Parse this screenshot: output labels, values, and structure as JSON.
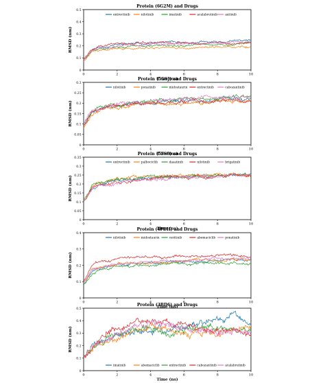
{
  "chart_data": [
    {
      "type": "line",
      "title": "Protein (6G2M) and Drugs",
      "xlabel": "Time (ns)",
      "ylabel": "RMSD (nm)",
      "xlim": [
        0,
        10
      ],
      "ylim": [
        0,
        0.5
      ],
      "xticks": [
        "0",
        "2",
        "4",
        "6",
        "8",
        "10"
      ],
      "yticks": [
        "0",
        "0.1",
        "0.2",
        "0.3",
        "0.4",
        "0.5"
      ],
      "legend_position": "top",
      "series": [
        {
          "name": "entrectinib",
          "color": "#1f77b4",
          "x": [
            0,
            0.5,
            1,
            1.5,
            2,
            3,
            4,
            5,
            6,
            7,
            8,
            9,
            10
          ],
          "y": [
            0.08,
            0.17,
            0.19,
            0.2,
            0.21,
            0.22,
            0.22,
            0.23,
            0.22,
            0.23,
            0.23,
            0.24,
            0.25
          ]
        },
        {
          "name": "nilotinib",
          "color": "#ff7f0e",
          "x": [
            0,
            0.5,
            1,
            1.5,
            2,
            3,
            4,
            5,
            6,
            7,
            8,
            9,
            10
          ],
          "y": [
            0.07,
            0.15,
            0.17,
            0.18,
            0.18,
            0.18,
            0.18,
            0.19,
            0.18,
            0.18,
            0.19,
            0.19,
            0.19
          ]
        },
        {
          "name": "imatinib",
          "color": "#2ca02c",
          "x": [
            0,
            0.5,
            1,
            1.5,
            2,
            3,
            4,
            5,
            6,
            7,
            8,
            9,
            10
          ],
          "y": [
            0.08,
            0.16,
            0.18,
            0.19,
            0.19,
            0.2,
            0.2,
            0.2,
            0.2,
            0.21,
            0.21,
            0.21,
            0.22
          ]
        },
        {
          "name": "acalabrutinib",
          "color": "#d62728",
          "x": [
            0,
            0.5,
            1,
            1.5,
            2,
            3,
            4,
            5,
            6,
            7,
            8,
            9,
            10
          ],
          "y": [
            0.09,
            0.17,
            0.2,
            0.21,
            0.22,
            0.22,
            0.23,
            0.22,
            0.23,
            0.22,
            0.23,
            0.22,
            0.22
          ]
        },
        {
          "name": "axitinib",
          "color": "#e377c2",
          "x": [
            0,
            0.5,
            1,
            1.5,
            2,
            3,
            4,
            5,
            6,
            7,
            8,
            9,
            10
          ],
          "y": [
            0.08,
            0.16,
            0.18,
            0.19,
            0.2,
            0.21,
            0.21,
            0.22,
            0.22,
            0.23,
            0.22,
            0.23,
            0.23
          ]
        }
      ]
    },
    {
      "type": "line",
      "title": "Protein (5GSJ) and Drugs",
      "xlabel": "Time (ns)",
      "ylabel": "RMSD (nm)",
      "xlim": [
        0,
        10
      ],
      "ylim": [
        0,
        0.3
      ],
      "xticks": [
        "0",
        "2",
        "4",
        "6",
        "8",
        "10"
      ],
      "yticks": [
        "0",
        "0.05",
        "0.1",
        "0.15",
        "0.2",
        "0.25",
        "0.3"
      ],
      "legend_position": "top",
      "series": [
        {
          "name": "nilotinib",
          "color": "#1f77b4",
          "x": [
            0,
            0.5,
            1,
            2,
            3,
            4,
            5,
            6,
            7,
            8,
            9,
            10
          ],
          "y": [
            0.09,
            0.16,
            0.17,
            0.19,
            0.2,
            0.2,
            0.21,
            0.21,
            0.21,
            0.22,
            0.22,
            0.22
          ]
        },
        {
          "name": "ponatinib",
          "color": "#ff7f0e",
          "x": [
            0,
            0.5,
            1,
            2,
            3,
            4,
            5,
            6,
            7,
            8,
            9,
            10
          ],
          "y": [
            0.08,
            0.15,
            0.17,
            0.18,
            0.19,
            0.2,
            0.2,
            0.2,
            0.2,
            0.21,
            0.21,
            0.21
          ]
        },
        {
          "name": "midostaurin",
          "color": "#2ca02c",
          "x": [
            0,
            0.5,
            1,
            2,
            3,
            4,
            5,
            6,
            7,
            8,
            9,
            10
          ],
          "y": [
            0.1,
            0.16,
            0.18,
            0.19,
            0.2,
            0.21,
            0.21,
            0.22,
            0.22,
            0.22,
            0.23,
            0.23
          ]
        },
        {
          "name": "entrectinib",
          "color": "#d62728",
          "x": [
            0,
            0.5,
            1,
            2,
            3,
            4,
            5,
            6,
            7,
            8,
            9,
            10
          ],
          "y": [
            0.09,
            0.16,
            0.17,
            0.19,
            0.2,
            0.2,
            0.2,
            0.21,
            0.21,
            0.21,
            0.21,
            0.21
          ]
        },
        {
          "name": "cabozantinib",
          "color": "#e377c2",
          "x": [
            0,
            0.5,
            1,
            2,
            3,
            4,
            5,
            6,
            7,
            8,
            9,
            10
          ],
          "y": [
            0.1,
            0.17,
            0.18,
            0.2,
            0.2,
            0.21,
            0.21,
            0.22,
            0.23,
            0.22,
            0.23,
            0.23
          ]
        }
      ]
    },
    {
      "type": "line",
      "title": "Protein (5FS8) and Drugs",
      "xlabel": "Time (ns)",
      "ylabel": "RMSD (nm)",
      "xlim": [
        0,
        10
      ],
      "ylim": [
        0,
        0.35
      ],
      "xticks": [
        "0",
        "2",
        "4",
        "6",
        "8",
        "10"
      ],
      "yticks": [
        "0",
        "0.05",
        "0.1",
        "0.15",
        "0.2",
        "0.25",
        "0.3",
        "0.35"
      ],
      "legend_position": "top",
      "series": [
        {
          "name": "entrectinib",
          "color": "#1f77b4",
          "x": [
            0,
            0.5,
            1,
            2,
            3,
            4,
            5,
            6,
            7,
            8,
            9,
            10
          ],
          "y": [
            0.1,
            0.18,
            0.2,
            0.22,
            0.23,
            0.24,
            0.24,
            0.24,
            0.25,
            0.25,
            0.25,
            0.26
          ]
        },
        {
          "name": "palbociclib",
          "color": "#ff7f0e",
          "x": [
            0,
            0.5,
            1,
            2,
            3,
            4,
            5,
            6,
            7,
            8,
            9,
            10
          ],
          "y": [
            0.1,
            0.19,
            0.21,
            0.23,
            0.24,
            0.24,
            0.24,
            0.25,
            0.25,
            0.25,
            0.25,
            0.25
          ]
        },
        {
          "name": "dasatinib",
          "color": "#2ca02c",
          "x": [
            0,
            0.5,
            1,
            2,
            3,
            4,
            5,
            6,
            7,
            8,
            9,
            10
          ],
          "y": [
            0.11,
            0.19,
            0.21,
            0.22,
            0.23,
            0.24,
            0.24,
            0.24,
            0.24,
            0.25,
            0.25,
            0.26
          ]
        },
        {
          "name": "nilotinib",
          "color": "#d62728",
          "x": [
            0,
            0.5,
            1,
            2,
            3,
            4,
            5,
            6,
            7,
            8,
            9,
            10
          ],
          "y": [
            0.1,
            0.18,
            0.2,
            0.21,
            0.22,
            0.23,
            0.24,
            0.24,
            0.24,
            0.24,
            0.25,
            0.25
          ]
        },
        {
          "name": "brigatinib",
          "color": "#e377c2",
          "x": [
            0,
            0.5,
            1,
            2,
            3,
            4,
            5,
            6,
            7,
            8,
            9,
            10
          ],
          "y": [
            0.1,
            0.17,
            0.19,
            0.21,
            0.22,
            0.23,
            0.23,
            0.24,
            0.24,
            0.24,
            0.25,
            0.25
          ]
        }
      ]
    },
    {
      "type": "line",
      "title": "Protein (4FDH) and Drugs",
      "xlabel": "Time (ns)",
      "ylabel": "RMSD (nm)",
      "xlim": [
        0,
        10
      ],
      "ylim": [
        0,
        0.4
      ],
      "xticks": [
        "0",
        "2",
        "4",
        "6",
        "8",
        "10"
      ],
      "yticks": [
        "0",
        "0.1",
        "0.2",
        "0.3",
        "0.4"
      ],
      "legend_position": "top",
      "series": [
        {
          "name": "nilotinib",
          "color": "#1f77b4",
          "x": [
            0,
            0.5,
            1,
            2,
            3,
            4,
            5,
            6,
            7,
            8,
            9,
            10
          ],
          "y": [
            0.08,
            0.16,
            0.18,
            0.2,
            0.21,
            0.21,
            0.22,
            0.22,
            0.22,
            0.23,
            0.23,
            0.23
          ]
        },
        {
          "name": "midostaurin",
          "color": "#ff7f0e",
          "x": [
            0,
            0.5,
            1,
            2,
            3,
            4,
            5,
            6,
            7,
            8,
            9,
            10
          ],
          "y": [
            0.09,
            0.17,
            0.19,
            0.21,
            0.22,
            0.22,
            0.22,
            0.23,
            0.23,
            0.23,
            0.23,
            0.23
          ]
        },
        {
          "name": "ceritinib",
          "color": "#2ca02c",
          "x": [
            0,
            0.5,
            1,
            2,
            3,
            4,
            5,
            6,
            7,
            8,
            9,
            10
          ],
          "y": [
            0.08,
            0.15,
            0.17,
            0.19,
            0.2,
            0.2,
            0.21,
            0.21,
            0.21,
            0.21,
            0.21,
            0.21
          ]
        },
        {
          "name": "abemaciclib",
          "color": "#d62728",
          "x": [
            0,
            0.5,
            1,
            2,
            3,
            4,
            5,
            6,
            7,
            8,
            9,
            10
          ],
          "y": [
            0.1,
            0.2,
            0.22,
            0.24,
            0.25,
            0.25,
            0.25,
            0.26,
            0.25,
            0.26,
            0.26,
            0.25
          ]
        },
        {
          "name": "ponatinib",
          "color": "#e377c2",
          "x": [
            0,
            0.5,
            1,
            2,
            3,
            4,
            5,
            6,
            7,
            8,
            9,
            10
          ],
          "y": [
            0.09,
            0.17,
            0.19,
            0.21,
            0.22,
            0.22,
            0.23,
            0.23,
            0.23,
            0.24,
            0.24,
            0.24
          ]
        }
      ]
    },
    {
      "type": "line",
      "title": "Protein (3BD6) and Drugs",
      "xlabel": "Time (ns)",
      "ylabel": "RMSD (nm)",
      "xlim": [
        0,
        10
      ],
      "ylim": [
        0,
        0.5
      ],
      "xticks": [
        "0",
        "2",
        "4",
        "6",
        "8",
        "10"
      ],
      "yticks": [
        "0",
        "0.1",
        "0.2",
        "0.3",
        "0.4",
        "0.5"
      ],
      "legend_position": "bottom",
      "series": [
        {
          "name": "imatinib",
          "color": "#1f77b4",
          "x": [
            0,
            0.5,
            1,
            2,
            3,
            4,
            5,
            6,
            7,
            8,
            9,
            10
          ],
          "y": [
            0.1,
            0.2,
            0.24,
            0.28,
            0.3,
            0.32,
            0.33,
            0.35,
            0.38,
            0.42,
            0.44,
            0.38
          ]
        },
        {
          "name": "abemaciclib",
          "color": "#ff7f0e",
          "x": [
            0,
            0.5,
            1,
            2,
            3,
            4,
            5,
            6,
            7,
            8,
            9,
            10
          ],
          "y": [
            0.1,
            0.18,
            0.22,
            0.27,
            0.32,
            0.36,
            0.33,
            0.3,
            0.29,
            0.31,
            0.33,
            0.37
          ]
        },
        {
          "name": "entrectinib",
          "color": "#2ca02c",
          "x": [
            0,
            0.5,
            1,
            2,
            3,
            4,
            5,
            6,
            7,
            8,
            9,
            10
          ],
          "y": [
            0.1,
            0.19,
            0.23,
            0.3,
            0.34,
            0.33,
            0.3,
            0.31,
            0.33,
            0.35,
            0.33,
            0.32
          ]
        },
        {
          "name": "cabozantinib",
          "color": "#d62728",
          "x": [
            0,
            0.5,
            1,
            2,
            3,
            4,
            5,
            6,
            7,
            8,
            9,
            10
          ],
          "y": [
            0.11,
            0.2,
            0.26,
            0.33,
            0.37,
            0.4,
            0.38,
            0.36,
            0.34,
            0.32,
            0.31,
            0.29
          ]
        },
        {
          "name": "acalabrutinib",
          "color": "#e377c2",
          "x": [
            0,
            0.5,
            1,
            2,
            3,
            4,
            5,
            6,
            7,
            8,
            9,
            10
          ],
          "y": [
            0.1,
            0.19,
            0.22,
            0.29,
            0.35,
            0.38,
            0.35,
            0.33,
            0.31,
            0.3,
            0.32,
            0.29
          ]
        }
      ]
    }
  ]
}
